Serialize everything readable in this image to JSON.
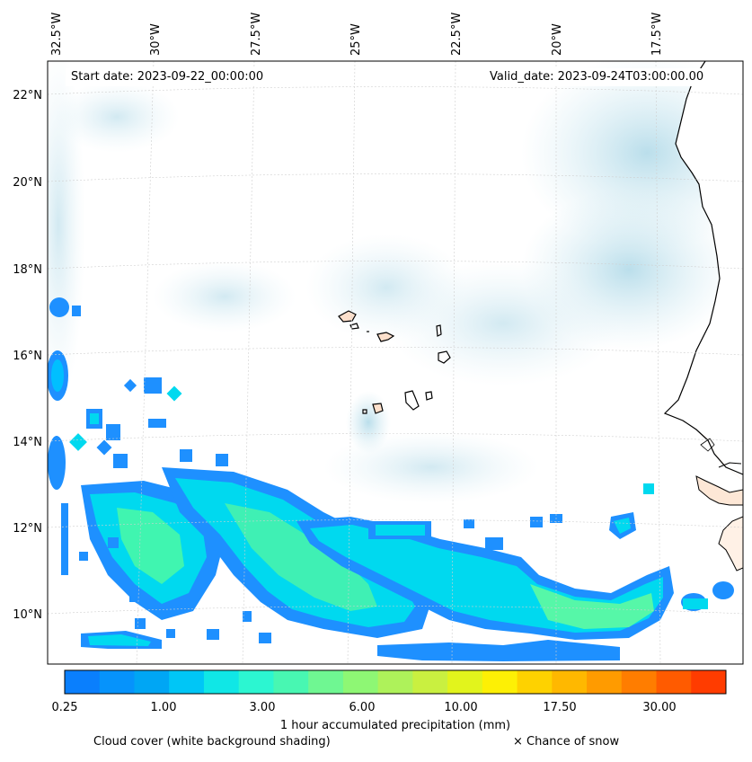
{
  "map": {
    "start_date": "Start date: 2023-09-22_00:00:00",
    "valid_date": "Valid_date: 2023-09-24T03:00:00.00",
    "lon_labels": [
      "32.5°W",
      "30°W",
      "27.5°W",
      "25°W",
      "22.5°W",
      "20°W",
      "17.5°W"
    ],
    "lat_labels": [
      "22°N",
      "20°N",
      "18°N",
      "16°N",
      "14°N",
      "12°N",
      "10°N"
    ]
  },
  "colorbar": {
    "title": "1 hour accumulated precipitation (mm)",
    "tick_labels": [
      "0.25",
      "1.00",
      "3.00",
      "6.00",
      "10.00",
      "17.50",
      "30.00"
    ],
    "colors": [
      "#0a7ffd",
      "#0693fb",
      "#00a6f4",
      "#00c6f6",
      "#10e7e6",
      "#2cf6d1",
      "#48f7b2",
      "#6ff792",
      "#8ef774",
      "#aef25a",
      "#c9f040",
      "#e2f41c",
      "#fdf005",
      "#fed200",
      "#ffb800",
      "#ff9b00",
      "#ff7d00",
      "#ff5b00",
      "#ff3c00"
    ]
  },
  "legend": {
    "cloud_cover": "Cloud cover (white background shading)",
    "snow": "× Chance of snow"
  },
  "colors": {
    "land": "#f4a460",
    "cloud": "#add8e6",
    "precip_light": "#1e90ff",
    "precip_mid": "#00e5ff",
    "precip_high": "#40f5a0"
  }
}
